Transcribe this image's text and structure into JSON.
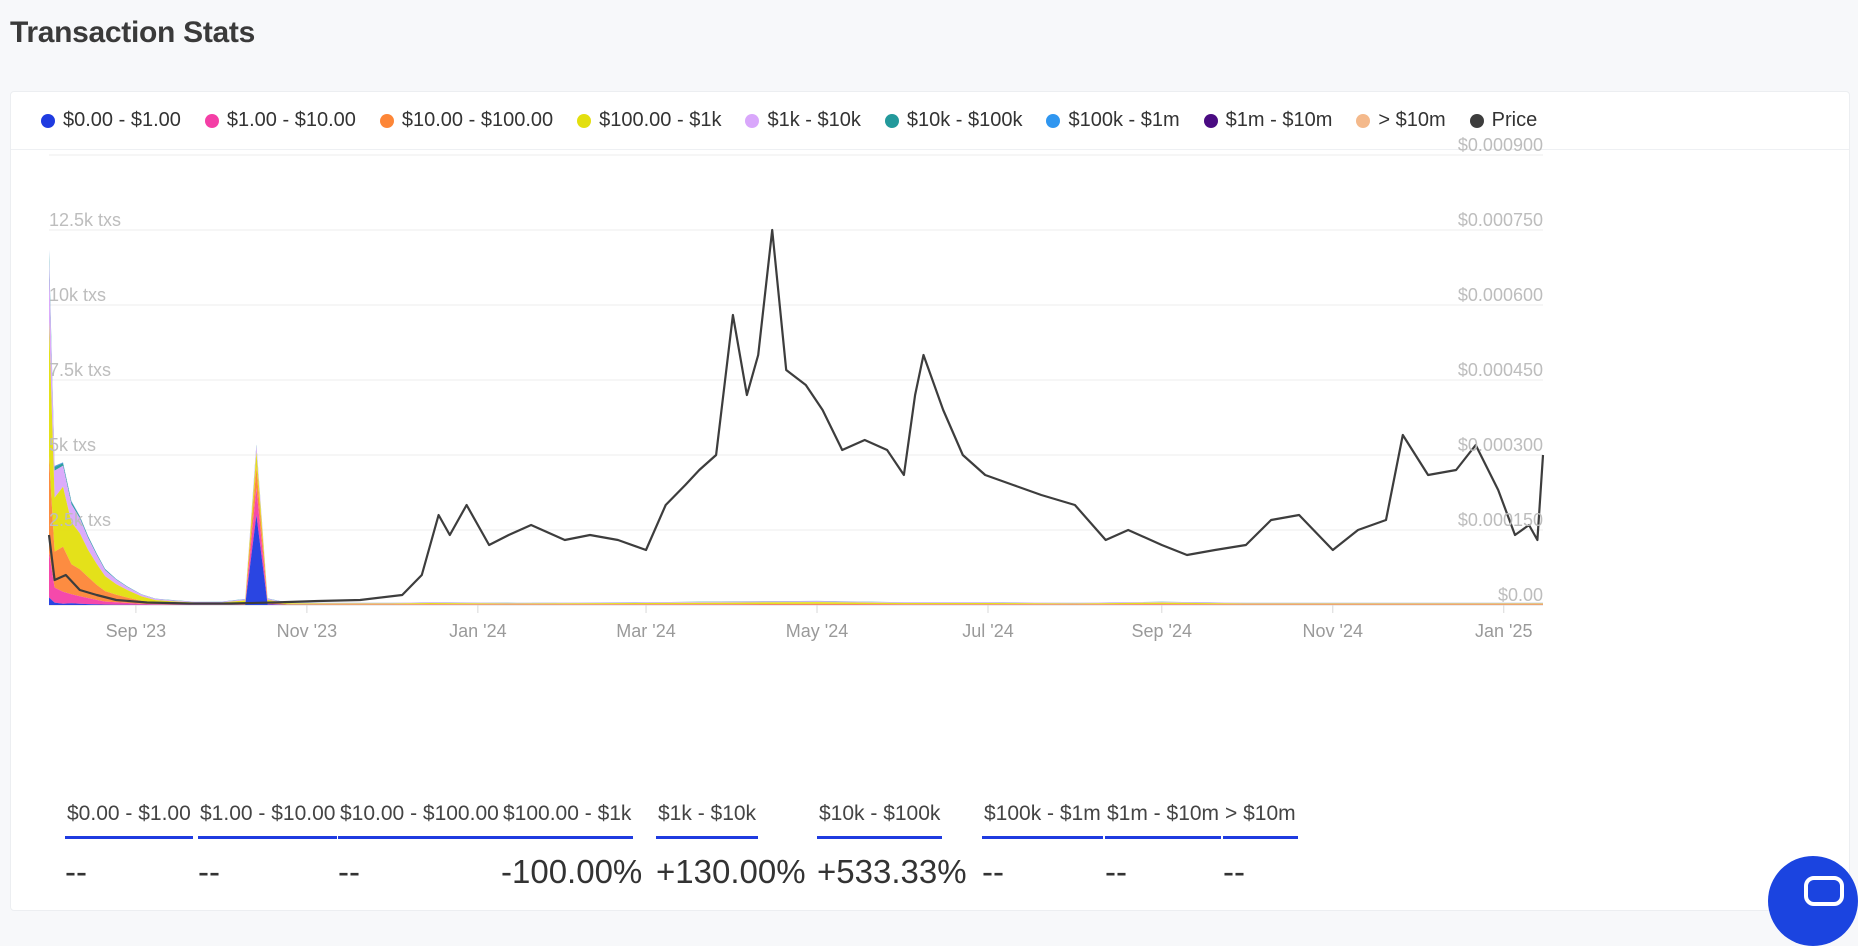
{
  "page": {
    "title": "Transaction Stats"
  },
  "legend": [
    {
      "label": "$0.00 - $1.00",
      "color": "#1f3be0"
    },
    {
      "label": "$1.00 - $10.00",
      "color": "#f43fa6"
    },
    {
      "label": "$10.00 - $100.00",
      "color": "#fd8637"
    },
    {
      "label": "$100.00 - $1k",
      "color": "#e3df0e"
    },
    {
      "label": "$1k - $10k",
      "color": "#d9a7fb"
    },
    {
      "label": "$10k - $100k",
      "color": "#23999b"
    },
    {
      "label": "$100k - $1m",
      "color": "#2f96f0"
    },
    {
      "label": "$1m - $10m",
      "color": "#4a0b82"
    },
    {
      "label": "> $10m",
      "color": "#f4b98b"
    },
    {
      "label": "Price",
      "color": "#3d3d3d"
    }
  ],
  "stats": [
    {
      "label": "$0.00 - $1.00",
      "value": "--"
    },
    {
      "label": "$1.00 - $10.00",
      "value": "--"
    },
    {
      "label": "$10.00 - $100.00",
      "value": "--"
    },
    {
      "label": "$100.00 - $1k",
      "value": "-100.00%"
    },
    {
      "label": "$1k - $10k",
      "value": "+130.00%"
    },
    {
      "label": "$10k - $100k",
      "value": "+533.33%"
    },
    {
      "label": "$100k - $1m",
      "value": "--"
    },
    {
      "label": "$1m - $10m",
      "value": "--"
    },
    {
      "label": "> $10m",
      "value": "--"
    }
  ],
  "chart_data": {
    "type": "area",
    "left_axis": {
      "ticks": [
        0,
        2500,
        5000,
        7500,
        10000,
        12500
      ],
      "tick_labels": [
        "",
        "2.5k txs",
        "5k txs",
        "7.5k txs",
        "10k txs",
        "12.5k txs"
      ],
      "range": [
        0,
        15000
      ]
    },
    "right_axis": {
      "ticks": [
        0,
        0.00015,
        0.0003,
        0.00045,
        0.0006,
        0.00075,
        0.0009
      ],
      "tick_labels": [
        "$0.00",
        "$0.000150",
        "$0.000300",
        "$0.000450",
        "$0.000600",
        "$0.000750",
        "$0.000900"
      ],
      "range": [
        0,
        0.0009
      ]
    },
    "x_axis": {
      "range": [
        "2023-08-01",
        "2025-01-15"
      ],
      "ticks": [
        "2023-09-01",
        "2023-11-01",
        "2024-01-01",
        "2024-03-01",
        "2024-05-01",
        "2024-07-01",
        "2024-09-01",
        "2024-11-01",
        "2025-01-01"
      ],
      "tick_labels": [
        "Sep '23",
        "Nov '23",
        "Jan '24",
        "Mar '24",
        "May '24",
        "Jul '24",
        "Sep '24",
        "Nov '24",
        "Jan '25"
      ]
    },
    "grid": true,
    "legend_position": "top",
    "tx_series": {
      "x": [
        "2023-08-01",
        "2023-08-03",
        "2023-08-06",
        "2023-08-09",
        "2023-08-12",
        "2023-08-15",
        "2023-08-18",
        "2023-08-21",
        "2023-08-25",
        "2023-08-29",
        "2023-09-03",
        "2023-09-08",
        "2023-09-15",
        "2023-09-22",
        "2023-10-01",
        "2023-10-10",
        "2023-10-14",
        "2023-10-18",
        "2023-10-25",
        "2023-11-10",
        "2023-12-01",
        "2023-12-15",
        "2024-01-15",
        "2024-03-01",
        "2024-04-01",
        "2024-05-01",
        "2024-06-01",
        "2024-07-01",
        "2024-08-01",
        "2024-09-01",
        "2024-10-01",
        "2024-11-01",
        "2024-12-01",
        "2025-01-01",
        "2025-01-15"
      ],
      "series": [
        {
          "name": "$0.00 - $1.00",
          "values": [
            250,
            80,
            40,
            60,
            40,
            30,
            20,
            15,
            10,
            8,
            5,
            4,
            3,
            2,
            2,
            3,
            3000,
            20,
            2,
            1,
            1,
            1,
            1,
            1,
            1,
            1,
            1,
            1,
            1,
            1,
            1,
            1,
            1,
            1,
            1
          ]
        },
        {
          "name": "$1.00 - $10.00",
          "values": [
            1500,
            500,
            400,
            300,
            250,
            200,
            150,
            100,
            80,
            60,
            30,
            20,
            15,
            10,
            8,
            10,
            900,
            20,
            5,
            5,
            5,
            5,
            5,
            5,
            5,
            5,
            5,
            5,
            5,
            5,
            5,
            5,
            5,
            5,
            5
          ]
        },
        {
          "name": "$10.00 - $100.00",
          "values": [
            3200,
            1200,
            1500,
            1000,
            900,
            700,
            500,
            350,
            250,
            180,
            100,
            60,
            40,
            30,
            30,
            60,
            700,
            60,
            20,
            15,
            15,
            20,
            15,
            20,
            25,
            30,
            20,
            20,
            15,
            25,
            15,
            15,
            15,
            15,
            15
          ]
        },
        {
          "name": "$100.00 - $1k",
          "values": [
            4500,
            1800,
            2000,
            1400,
            1200,
            900,
            700,
            500,
            350,
            250,
            150,
            80,
            60,
            40,
            40,
            80,
            500,
            70,
            30,
            30,
            30,
            40,
            30,
            40,
            50,
            60,
            40,
            40,
            30,
            50,
            30,
            30,
            30,
            30,
            30
          ]
        },
        {
          "name": "$1k - $10k",
          "values": [
            2000,
            900,
            700,
            600,
            500,
            400,
            300,
            200,
            150,
            100,
            60,
            40,
            30,
            20,
            20,
            40,
            200,
            40,
            20,
            20,
            20,
            20,
            20,
            20,
            30,
            30,
            20,
            20,
            20,
            20,
            20,
            20,
            20,
            20,
            20
          ]
        },
        {
          "name": "$10k - $100k",
          "values": [
            300,
            120,
            90,
            80,
            60,
            50,
            40,
            30,
            20,
            15,
            10,
            8,
            6,
            5,
            5,
            8,
            40,
            8,
            5,
            5,
            5,
            5,
            5,
            5,
            8,
            8,
            5,
            5,
            5,
            5,
            5,
            5,
            5,
            5,
            5
          ]
        },
        {
          "name": "$100k - $1m",
          "values": [
            80,
            30,
            20,
            20,
            15,
            12,
            10,
            8,
            6,
            4,
            3,
            2,
            2,
            2,
            2,
            2,
            10,
            2,
            1,
            1,
            1,
            1,
            1,
            1,
            2,
            2,
            1,
            1,
            1,
            1,
            1,
            1,
            1,
            1,
            1
          ]
        },
        {
          "name": "$1m - $10m",
          "values": [
            10,
            4,
            3,
            3,
            2,
            2,
            1,
            1,
            1,
            1,
            1,
            0,
            0,
            0,
            0,
            0,
            2,
            0,
            0,
            0,
            0,
            0,
            0,
            0,
            0,
            0,
            0,
            0,
            0,
            0,
            0,
            0,
            0,
            0,
            0
          ]
        },
        {
          "name": "> $10m",
          "values": [
            5,
            2,
            1,
            1,
            1,
            1,
            0,
            0,
            0,
            0,
            0,
            0,
            0,
            0,
            0,
            0,
            1,
            0,
            0,
            0,
            0,
            0,
            0,
            0,
            0,
            0,
            0,
            0,
            0,
            0,
            0,
            0,
            0,
            0,
            0
          ]
        }
      ]
    },
    "price_series": {
      "name": "Price",
      "x": [
        "2023-08-01",
        "2023-08-03",
        "2023-08-07",
        "2023-08-12",
        "2023-08-18",
        "2023-08-25",
        "2023-09-05",
        "2023-09-20",
        "2023-10-05",
        "2023-10-20",
        "2023-11-05",
        "2023-11-20",
        "2023-12-05",
        "2023-12-12",
        "2023-12-18",
        "2023-12-22",
        "2023-12-28",
        "2024-01-05",
        "2024-01-12",
        "2024-01-20",
        "2024-02-01",
        "2024-02-10",
        "2024-02-20",
        "2024-03-01",
        "2024-03-08",
        "2024-03-15",
        "2024-03-20",
        "2024-03-26",
        "2024-04-01",
        "2024-04-06",
        "2024-04-10",
        "2024-04-15",
        "2024-04-20",
        "2024-04-27",
        "2024-05-03",
        "2024-05-10",
        "2024-05-18",
        "2024-05-26",
        "2024-06-01",
        "2024-06-05",
        "2024-06-08",
        "2024-06-15",
        "2024-06-22",
        "2024-06-30",
        "2024-07-10",
        "2024-07-20",
        "2024-08-01",
        "2024-08-12",
        "2024-08-20",
        "2024-09-01",
        "2024-09-10",
        "2024-09-20",
        "2024-10-01",
        "2024-10-10",
        "2024-10-20",
        "2024-11-01",
        "2024-11-10",
        "2024-11-20",
        "2024-11-26",
        "2024-12-05",
        "2024-12-15",
        "2024-12-22",
        "2024-12-30",
        "2025-01-05",
        "2025-01-10",
        "2025-01-13",
        "2025-01-15"
      ],
      "values": [
        0.00014,
        5e-05,
        6e-05,
        3e-05,
        2e-05,
        1e-05,
        5e-06,
        3e-06,
        3e-06,
        5e-06,
        8e-06,
        1e-05,
        2e-05,
        6e-05,
        0.00018,
        0.00014,
        0.0002,
        0.00012,
        0.00014,
        0.00016,
        0.00013,
        0.00014,
        0.00013,
        0.00011,
        0.0002,
        0.00024,
        0.00027,
        0.0003,
        0.00058,
        0.00042,
        0.0005,
        0.00075,
        0.00047,
        0.00044,
        0.00039,
        0.00031,
        0.00033,
        0.00031,
        0.00026,
        0.00042,
        0.0005,
        0.00039,
        0.0003,
        0.00026,
        0.00024,
        0.00022,
        0.0002,
        0.00013,
        0.00015,
        0.00012,
        0.0001,
        0.00011,
        0.00012,
        0.00017,
        0.00018,
        0.00011,
        0.00015,
        0.00017,
        0.00034,
        0.00026,
        0.00027,
        0.00032,
        0.00023,
        0.00014,
        0.00016,
        0.00013,
        0.0003
      ]
    }
  }
}
